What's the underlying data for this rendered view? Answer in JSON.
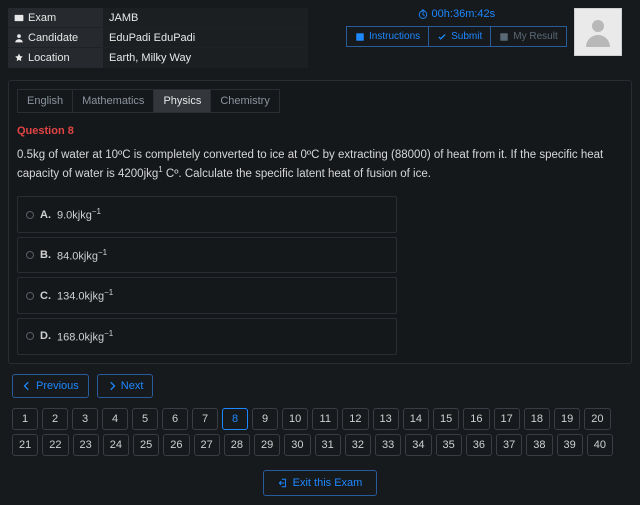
{
  "info": {
    "exam_label": "Exam",
    "exam_value": "JAMB",
    "candidate_label": "Candidate",
    "candidate_value": "EduPadi EduPadi",
    "location_label": "Location",
    "location_value": "Earth, Milky Way"
  },
  "timer": "00h:36m:42s",
  "actions": {
    "instructions": "Instructions",
    "submit": "Submit",
    "my_result": "My Result"
  },
  "tabs": [
    {
      "label": "English",
      "active": false
    },
    {
      "label": "Mathematics",
      "active": false
    },
    {
      "label": "Physics",
      "active": true
    },
    {
      "label": "Chemistry",
      "active": false
    }
  ],
  "question": {
    "label": "Question 8",
    "text_pre": "0.5kg of water at 10ºC is completely converted to ice at 0ºC by extracting (88000) of heat from it. If the specific heat capacity of water is 4200jkg",
    "text_sup": "1",
    "text_post": " Cº. Calculate the specific latent heat of fusion of ice."
  },
  "options": [
    {
      "letter": "A.",
      "value": "9.0kjkg",
      "sup": "−1"
    },
    {
      "letter": "B.",
      "value": "84.0kjkg",
      "sup": "−1"
    },
    {
      "letter": "C.",
      "value": "134.0kjkg",
      "sup": "−1"
    },
    {
      "letter": "D.",
      "value": "168.0kjkg",
      "sup": "−1"
    }
  ],
  "nav": {
    "previous": "Previous",
    "next": "Next"
  },
  "current_question": 8,
  "total_questions": 40,
  "exit": "Exit this Exam",
  "colors": {
    "background": "#161a1d",
    "card_bg": "#15181b",
    "border": "#2a2e33",
    "accent": "#1e88ff",
    "danger": "#e24444",
    "text": "#d0d0d0",
    "muted": "#8b949e"
  }
}
